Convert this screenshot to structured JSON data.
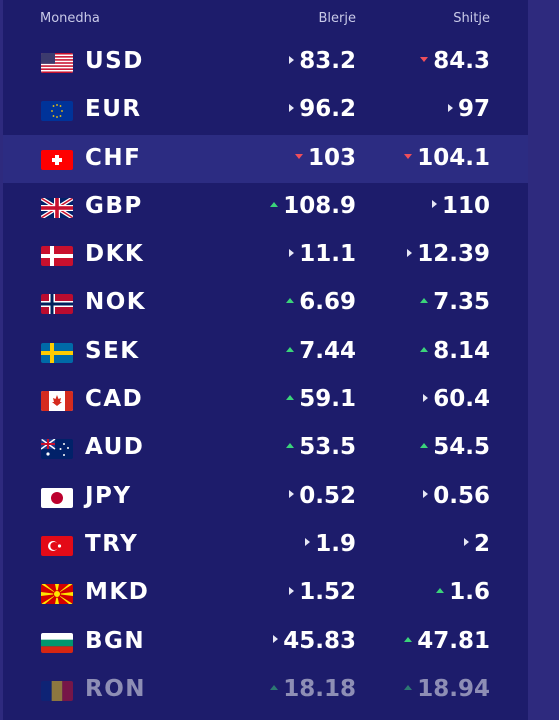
{
  "header": {
    "currency": "Monedha",
    "buy": "Blerje",
    "sell": "Shitje"
  },
  "colors": {
    "up": "#3bd47a",
    "down": "#ef4e5a",
    "flat": "#e6e6f5"
  },
  "rows": [
    {
      "code": "USD",
      "flag": "us-flag-icon",
      "buy": "83.2",
      "buy_trend": "flat",
      "sell": "84.3",
      "sell_trend": "down"
    },
    {
      "code": "EUR",
      "flag": "eu-flag-icon",
      "buy": "96.2",
      "buy_trend": "flat",
      "sell": "97",
      "sell_trend": "flat"
    },
    {
      "code": "CHF",
      "flag": "ch-flag-icon",
      "buy": "103",
      "buy_trend": "down",
      "sell": "104.1",
      "sell_trend": "down"
    },
    {
      "code": "GBP",
      "flag": "gb-flag-icon",
      "buy": "108.9",
      "buy_trend": "up",
      "sell": "110",
      "sell_trend": "flat"
    },
    {
      "code": "DKK",
      "flag": "dk-flag-icon",
      "buy": "11.1",
      "buy_trend": "flat",
      "sell": "12.39",
      "sell_trend": "flat"
    },
    {
      "code": "NOK",
      "flag": "no-flag-icon",
      "buy": "6.69",
      "buy_trend": "up",
      "sell": "7.35",
      "sell_trend": "up"
    },
    {
      "code": "SEK",
      "flag": "se-flag-icon",
      "buy": "7.44",
      "buy_trend": "up",
      "sell": "8.14",
      "sell_trend": "up"
    },
    {
      "code": "CAD",
      "flag": "ca-flag-icon",
      "buy": "59.1",
      "buy_trend": "up",
      "sell": "60.4",
      "sell_trend": "flat"
    },
    {
      "code": "AUD",
      "flag": "au-flag-icon",
      "buy": "53.5",
      "buy_trend": "up",
      "sell": "54.5",
      "sell_trend": "up"
    },
    {
      "code": "JPY",
      "flag": "jp-flag-icon",
      "buy": "0.52",
      "buy_trend": "flat",
      "sell": "0.56",
      "sell_trend": "flat"
    },
    {
      "code": "TRY",
      "flag": "tr-flag-icon",
      "buy": "1.9",
      "buy_trend": "flat",
      "sell": "2",
      "sell_trend": "flat"
    },
    {
      "code": "MKD",
      "flag": "mk-flag-icon",
      "buy": "1.52",
      "buy_trend": "flat",
      "sell": "1.6",
      "sell_trend": "up"
    },
    {
      "code": "BGN",
      "flag": "bg-flag-icon",
      "buy": "45.83",
      "buy_trend": "flat",
      "sell": "47.81",
      "sell_trend": "up"
    },
    {
      "code": "RON",
      "flag": "ro-flag-icon",
      "buy": "18.18",
      "buy_trend": "up",
      "sell": "18.94",
      "sell_trend": "up"
    }
  ]
}
